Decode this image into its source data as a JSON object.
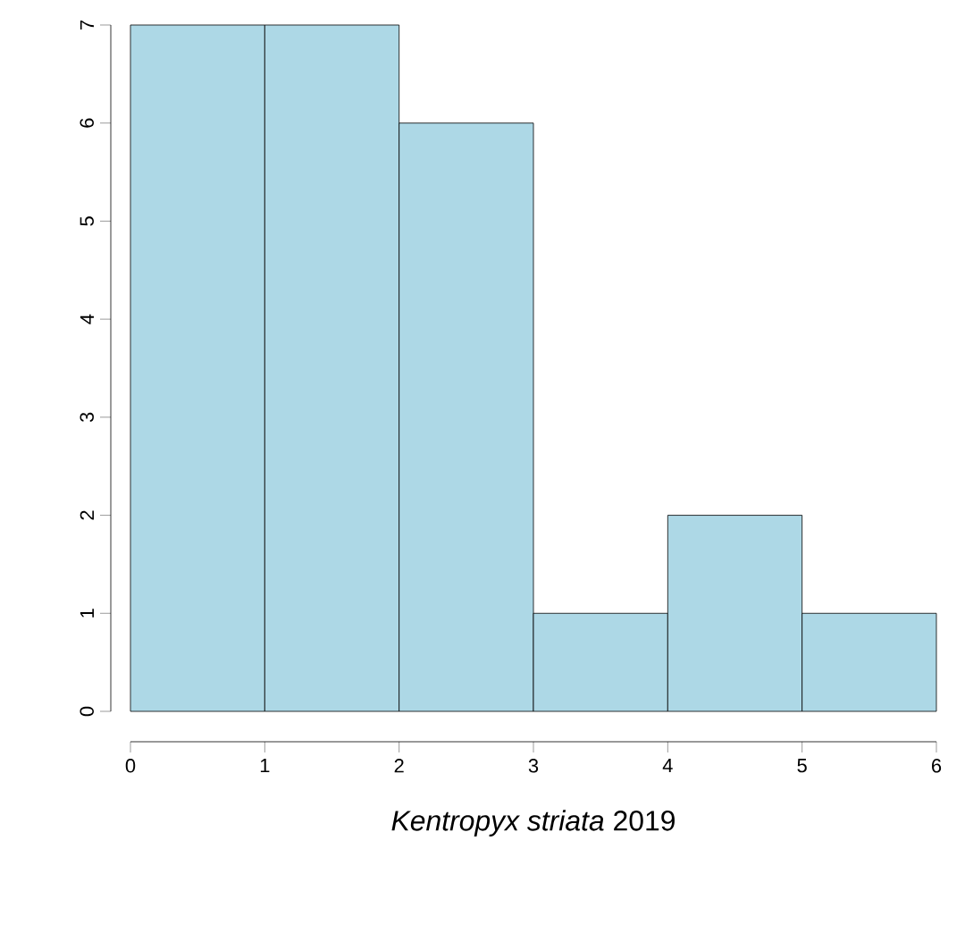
{
  "chart_data": {
    "type": "histogram",
    "xlabel": "*Kentropyx striata* 2019",
    "bins": [
      0,
      1,
      2,
      3,
      4,
      5,
      6
    ],
    "values": [
      7,
      7,
      6,
      1,
      2,
      1
    ],
    "color": "#add8e6",
    "xlim": [
      0,
      6
    ],
    "xticks": [
      0,
      1,
      2,
      3,
      4,
      5,
      6
    ],
    "ylim": [
      0,
      7
    ],
    "yticks": [
      0,
      1,
      2,
      3,
      4,
      5,
      6,
      7
    ]
  }
}
